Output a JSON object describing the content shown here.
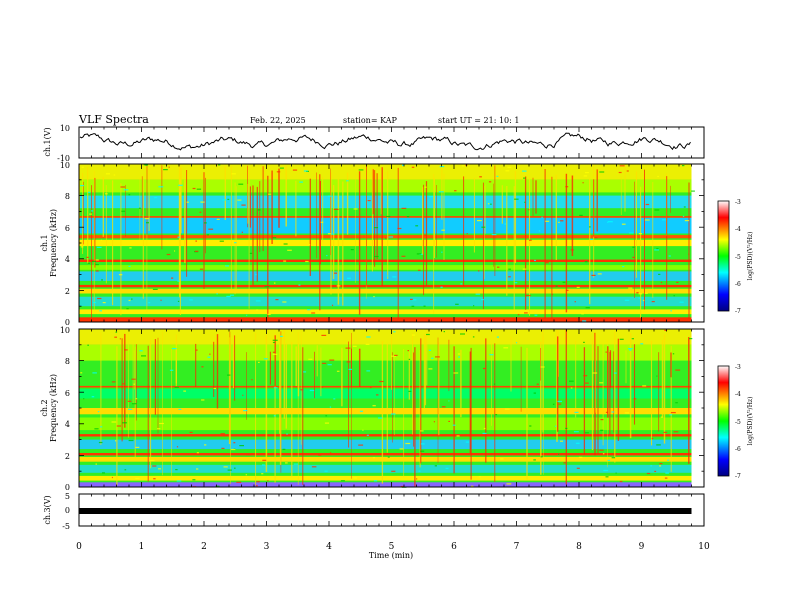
{
  "header": {
    "title": "VLF Spectra",
    "date": "Feb. 22, 2025",
    "station": "station= KAP",
    "start": "start  UT  =   21: 10: 1"
  },
  "chart_data": {
    "type": "heatmap",
    "xlabel": "Time  (min)",
    "xlim": [
      0,
      10
    ],
    "xticks": [
      "0",
      "1",
      "2",
      "3",
      "4",
      "5",
      "6",
      "7",
      "8",
      "9",
      "10"
    ],
    "data_end_min": 9.8,
    "panels": [
      {
        "id": "ch1-waveform",
        "ylabel": "ch.1(V)",
        "ylim": [
          -10,
          10
        ],
        "yticks": [
          "10",
          "-10"
        ]
      },
      {
        "id": "ch1-spectrogram",
        "ylabel_top": "ch.1",
        "ylabel": "Frequency  (kHz)",
        "ylim": [
          0,
          10
        ],
        "yticks": [
          "0",
          "2",
          "4",
          "6",
          "8",
          "10"
        ]
      },
      {
        "id": "ch2-spectrogram",
        "ylabel_top": "ch.2",
        "ylabel": "Frequency  (kHz)",
        "ylim": [
          0,
          10
        ],
        "yticks": [
          "0",
          "2",
          "4",
          "6",
          "8",
          "10"
        ]
      },
      {
        "id": "ch3-waveform",
        "ylabel": "ch.3(V)",
        "ylim": [
          -5,
          5
        ],
        "yticks": [
          "5",
          "0",
          "-5"
        ],
        "constant_level_v": 0
      }
    ],
    "colorbar": {
      "label": "log(PSD)(V²/Hz)",
      "range": [
        -7,
        -3
      ],
      "ticks": [
        "-3",
        "-4",
        "-5",
        "-6",
        "-7"
      ]
    },
    "colors": {
      "stops": [
        "#000080",
        "#0000ff",
        "#00ffff",
        "#00ff00",
        "#ffff00",
        "#ff0000",
        "#ffffff"
      ]
    }
  }
}
